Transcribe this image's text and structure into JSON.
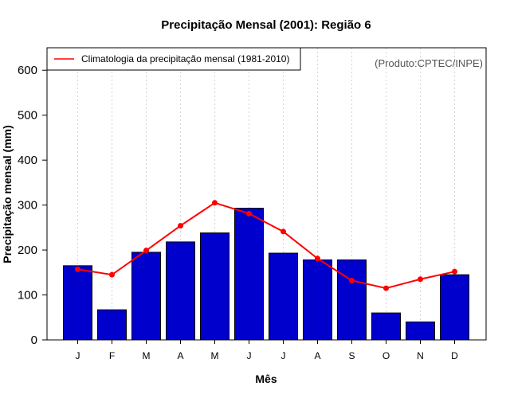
{
  "chart_data": {
    "type": "bar",
    "title": "Precipitação Mensal (2001): Região 6",
    "xlabel": "Mês",
    "ylabel": "Precipitação mensal (mm)",
    "ylim": [
      0,
      650
    ],
    "yticks": [
      0,
      100,
      200,
      300,
      400,
      500,
      600
    ],
    "categories": [
      "J",
      "F",
      "M",
      "A",
      "M",
      "J",
      "J",
      "A",
      "S",
      "O",
      "N",
      "D"
    ],
    "series": [
      {
        "name": "Precipitação mensal (2001)",
        "type": "bar",
        "color": "#0000cd",
        "values": [
          165,
          67,
          195,
          218,
          238,
          293,
          193,
          178,
          178,
          60,
          40,
          145
        ]
      },
      {
        "name": "Climatologia da precipitação mensal (1981-2010)",
        "type": "line",
        "color": "#ff0000",
        "values": [
          157,
          145,
          199,
          254,
          305,
          281,
          241,
          181,
          132,
          115,
          135,
          152
        ]
      }
    ],
    "legend": {
      "entries": [
        "Climatologia da precipitação mensal (1981-2010)"
      ],
      "position": "top-left"
    },
    "grid": "vertical dotted",
    "annotation": "(Produto:CPTEC/INPE)"
  }
}
